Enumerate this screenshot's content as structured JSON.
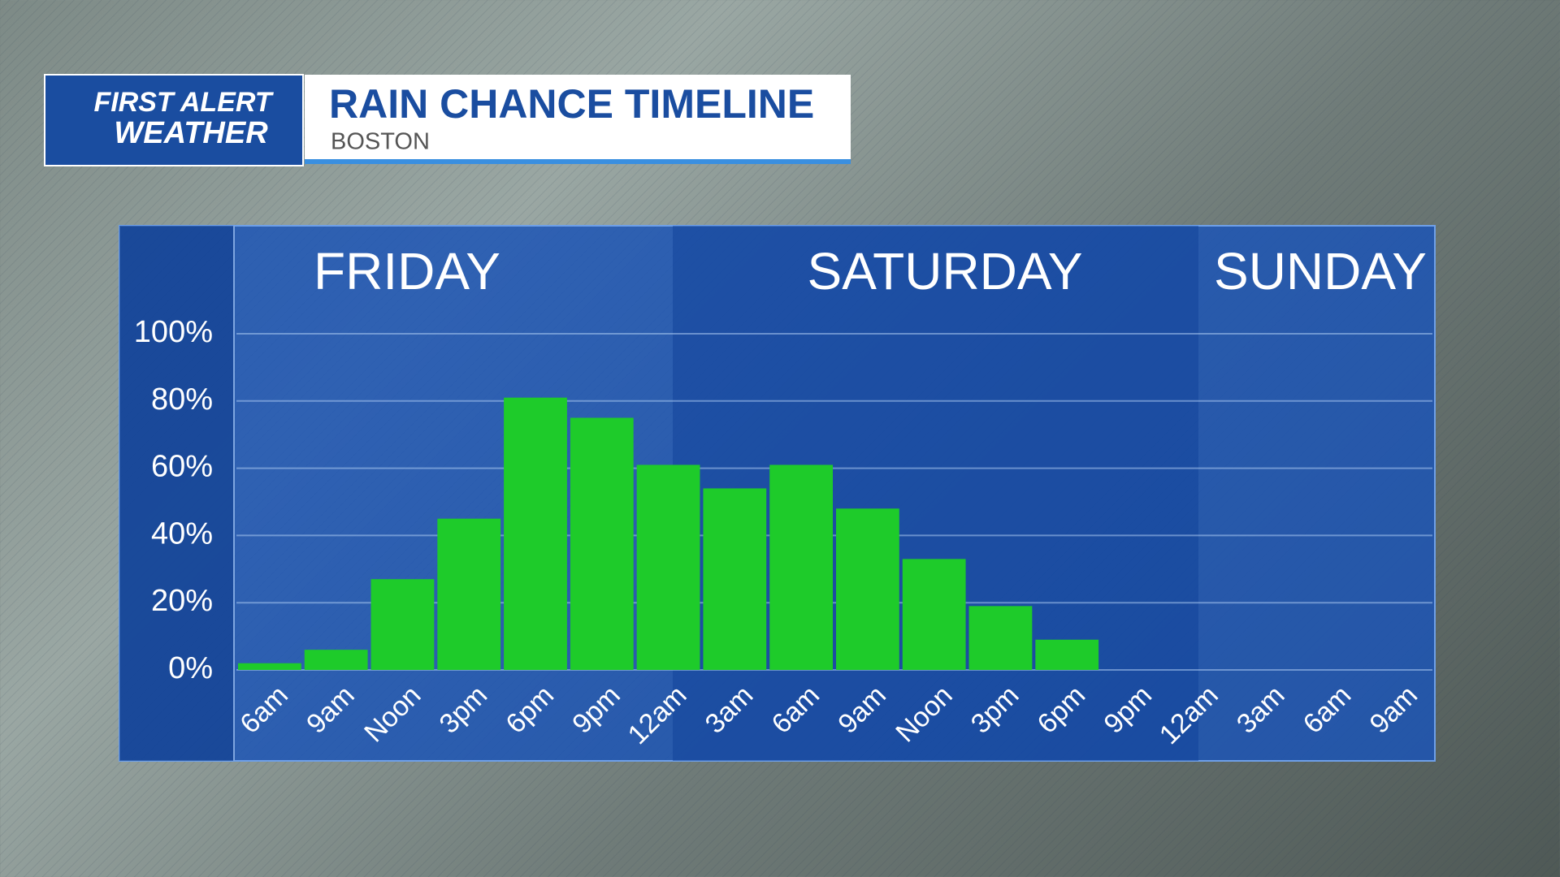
{
  "header": {
    "logo_top": "FIRST ALERT",
    "logo_bottom": "WEATHER",
    "title": "RAIN CHANCE TIMELINE",
    "subtitle": "BOSTON"
  },
  "chart_data": {
    "type": "bar",
    "days": [
      "FRIDAY",
      "SATURDAY",
      "SUNDAY"
    ],
    "categories": [
      "6am",
      "9am",
      "Noon",
      "3pm",
      "6pm",
      "9pm",
      "12am",
      "3am",
      "6am",
      "9am",
      "Noon",
      "3pm",
      "6pm",
      "9pm",
      "12am",
      "3am",
      "6am",
      "9am"
    ],
    "values": [
      2,
      6,
      27,
      45,
      81,
      75,
      61,
      54,
      61,
      48,
      33,
      19,
      9,
      null,
      null,
      null,
      null,
      null
    ],
    "color": "#1ecb2a",
    "ylim": [
      0,
      100
    ],
    "yticks": [
      {
        "value": 0,
        "label": "0%"
      },
      {
        "value": 20,
        "label": "20%"
      },
      {
        "value": 40,
        "label": "40%"
      },
      {
        "value": 60,
        "label": "60%"
      },
      {
        "value": 80,
        "label": "80%"
      },
      {
        "value": 100,
        "label": "100%"
      }
    ],
    "grid": true
  }
}
